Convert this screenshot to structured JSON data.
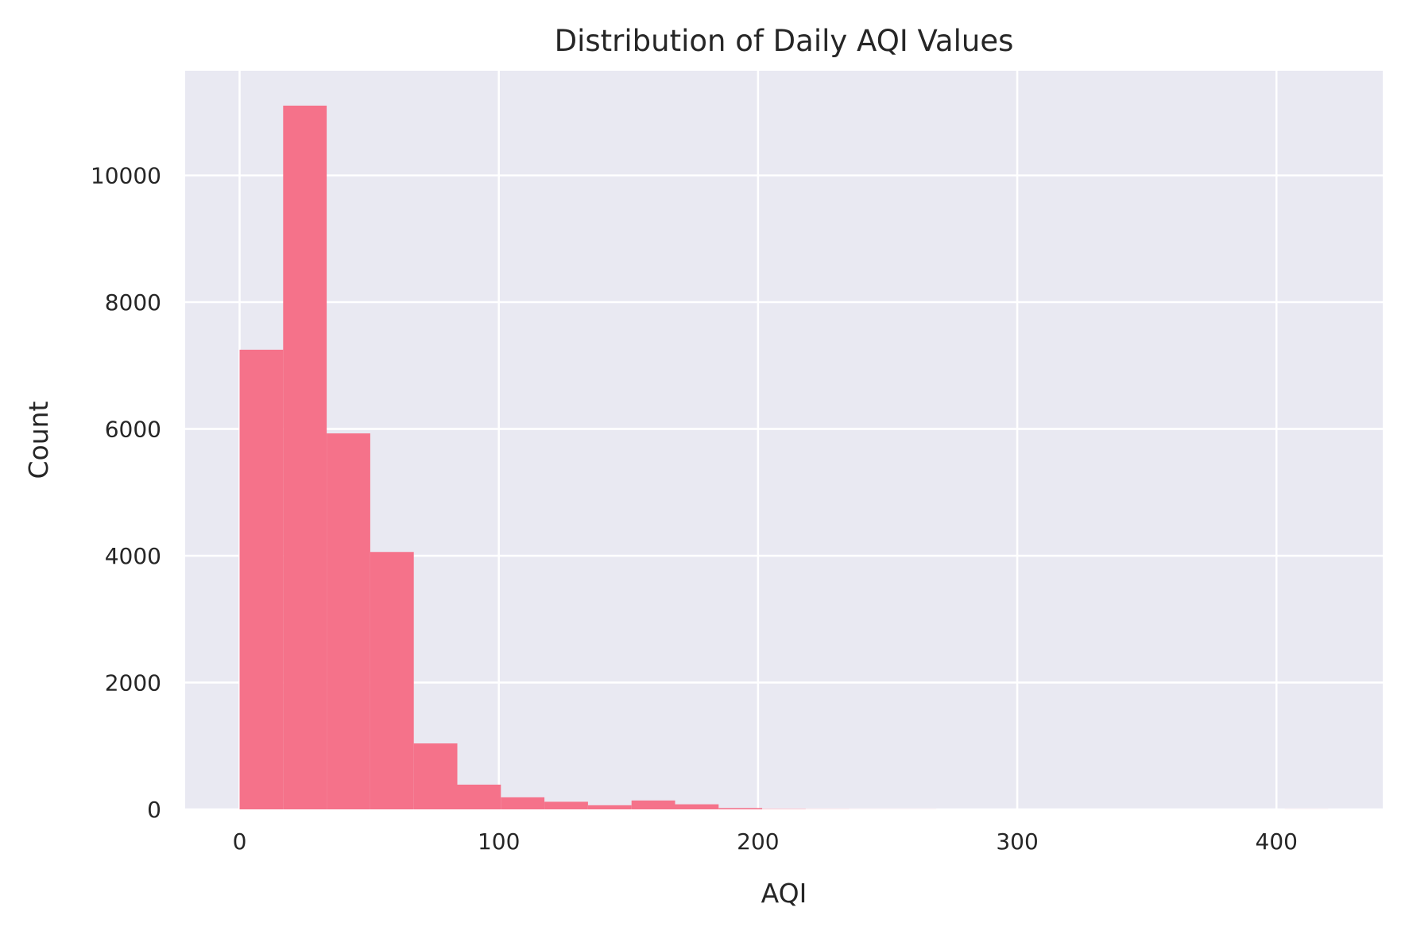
{
  "chart_data": {
    "type": "bar",
    "title": "Distribution of Daily AQI Values",
    "xlabel": "AQI",
    "ylabel": "Count",
    "xlim": [
      -21,
      441
    ],
    "ylim": [
      0,
      11650
    ],
    "x_ticks": [
      0,
      100,
      200,
      300,
      400
    ],
    "y_ticks": [
      0,
      2000,
      4000,
      6000,
      8000,
      10000
    ],
    "x_tick_labels": [
      "0",
      "100",
      "200",
      "300",
      "400"
    ],
    "y_tick_labels": [
      "0",
      "2000",
      "4000",
      "6000",
      "8000",
      "10000"
    ],
    "grid": true,
    "bin_width": 16.8,
    "bins": [
      {
        "x0": 0.0,
        "x1": 16.8,
        "count": 7250
      },
      {
        "x0": 16.8,
        "x1": 33.6,
        "count": 11100
      },
      {
        "x0": 33.6,
        "x1": 50.4,
        "count": 5930
      },
      {
        "x0": 50.4,
        "x1": 67.2,
        "count": 4060
      },
      {
        "x0": 67.2,
        "x1": 84.0,
        "count": 1040
      },
      {
        "x0": 84.0,
        "x1": 100.8,
        "count": 390
      },
      {
        "x0": 100.8,
        "x1": 117.6,
        "count": 190
      },
      {
        "x0": 117.6,
        "x1": 134.4,
        "count": 120
      },
      {
        "x0": 134.4,
        "x1": 151.2,
        "count": 65
      },
      {
        "x0": 151.2,
        "x1": 168.0,
        "count": 140
      },
      {
        "x0": 168.0,
        "x1": 184.8,
        "count": 80
      },
      {
        "x0": 184.8,
        "x1": 201.6,
        "count": 20
      },
      {
        "x0": 201.6,
        "x1": 218.4,
        "count": 5
      },
      {
        "x0": 218.4,
        "x1": 235.2,
        "count": 2
      },
      {
        "x0": 235.2,
        "x1": 252.0,
        "count": 1
      },
      {
        "x0": 252.0,
        "x1": 268.8,
        "count": 1
      },
      {
        "x0": 268.8,
        "x1": 285.6,
        "count": 0
      },
      {
        "x0": 285.6,
        "x1": 302.4,
        "count": 0
      },
      {
        "x0": 302.4,
        "x1": 319.2,
        "count": 0
      },
      {
        "x0": 319.2,
        "x1": 336.0,
        "count": 0
      },
      {
        "x0": 336.0,
        "x1": 352.8,
        "count": 0
      },
      {
        "x0": 352.8,
        "x1": 369.6,
        "count": 0
      },
      {
        "x0": 369.6,
        "x1": 386.4,
        "count": 0
      },
      {
        "x0": 386.4,
        "x1": 403.2,
        "count": 0
      },
      {
        "x0": 403.2,
        "x1": 420.0,
        "count": 1
      }
    ],
    "colors": {
      "bar": "#f5728a",
      "plot_background": "#e9e9f2",
      "grid": "#ffffff",
      "text": "#262626"
    }
  }
}
